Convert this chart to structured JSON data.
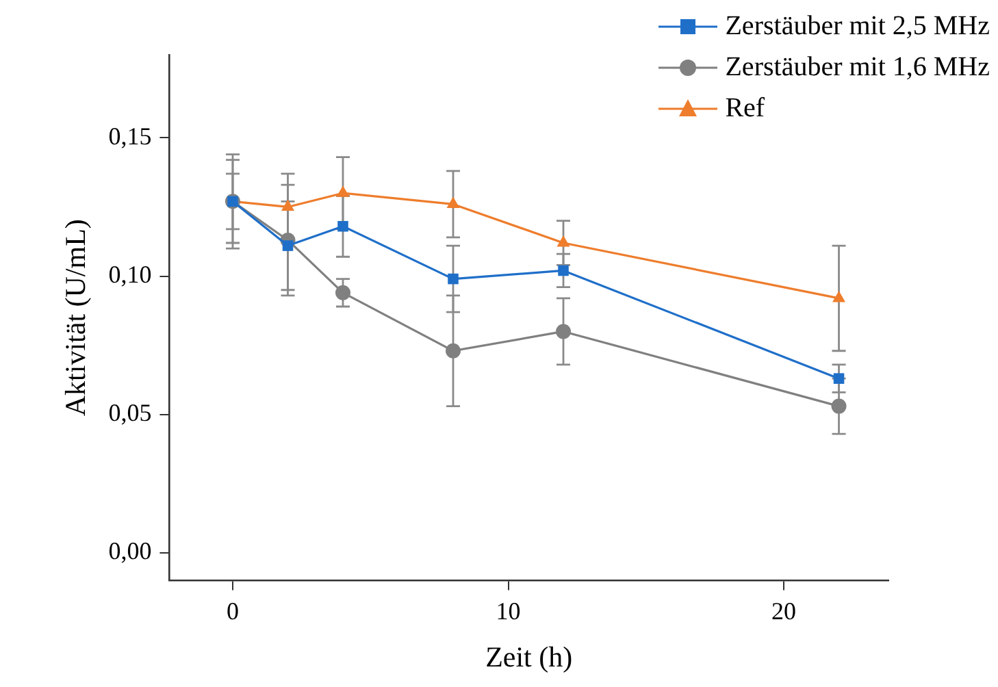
{
  "chart_data": {
    "type": "line",
    "xlabel": "Zeit (h)",
    "ylabel": "Aktivität (U/mL)",
    "x": [
      0,
      2,
      4,
      8,
      12,
      22
    ],
    "series": [
      {
        "name": "Zerstäuber mit 2,5 MHz",
        "color": "#1f6fc9",
        "marker": "square",
        "values": [
          0.127,
          0.111,
          0.118,
          0.099,
          0.102,
          0.063
        ],
        "errors": [
          0.01,
          0.016,
          0.011,
          0.012,
          0.006,
          0.005
        ]
      },
      {
        "name": "Zerstäuber mit 1,6 MHz",
        "color": "#808080",
        "marker": "circle",
        "values": [
          0.127,
          0.113,
          0.094,
          0.073,
          0.08,
          0.053
        ],
        "errors": [
          0.015,
          0.02,
          0.005,
          0.02,
          0.012,
          0.01
        ]
      },
      {
        "name": "Ref",
        "color": "#ee7d2c",
        "marker": "triangle",
        "values": [
          0.127,
          0.125,
          0.13,
          0.126,
          0.112,
          0.092
        ],
        "errors": [
          0.017,
          0.012,
          0.013,
          0.012,
          0.008,
          0.019
        ]
      }
    ],
    "xlim": [
      -2.3,
      23.8
    ],
    "xticks": [
      0,
      10,
      20
    ],
    "ylim": [
      -0.01,
      0.18
    ],
    "yticks": [
      {
        "value": 0,
        "label": "0,00"
      },
      {
        "value": 0.05,
        "label": "0,05"
      },
      {
        "value": 0.1,
        "label": "0,10"
      },
      {
        "value": 0.15,
        "label": "0,15"
      }
    ],
    "grid": false,
    "legend": "top right",
    "line_style": "solid"
  }
}
